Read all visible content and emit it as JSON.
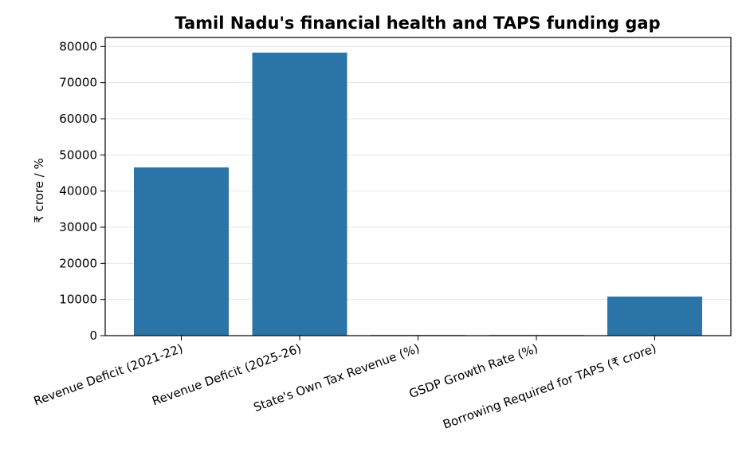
{
  "chart_data": {
    "type": "bar",
    "title": "Tamil Nadu's financial health and TAPS funding gap",
    "xlabel": "",
    "ylabel": "₹ crore / %",
    "categories": [
      "Revenue Deficit (2021-22)",
      "Revenue Deficit (2025-26)",
      "State's Own Tax Revenue (%)",
      "GSDP Growth Rate (%)",
      "Borrowing Required for TAPS (₹ crore)"
    ],
    "values": [
      46538,
      78300,
      160,
      8,
      10800
    ],
    "ylim": [
      0,
      82500
    ],
    "yticks": [
      0,
      10000,
      20000,
      30000,
      40000,
      50000,
      60000,
      70000,
      80000
    ],
    "grid": "horizontal",
    "legend": "none",
    "bar_color": "#2a74a8"
  }
}
